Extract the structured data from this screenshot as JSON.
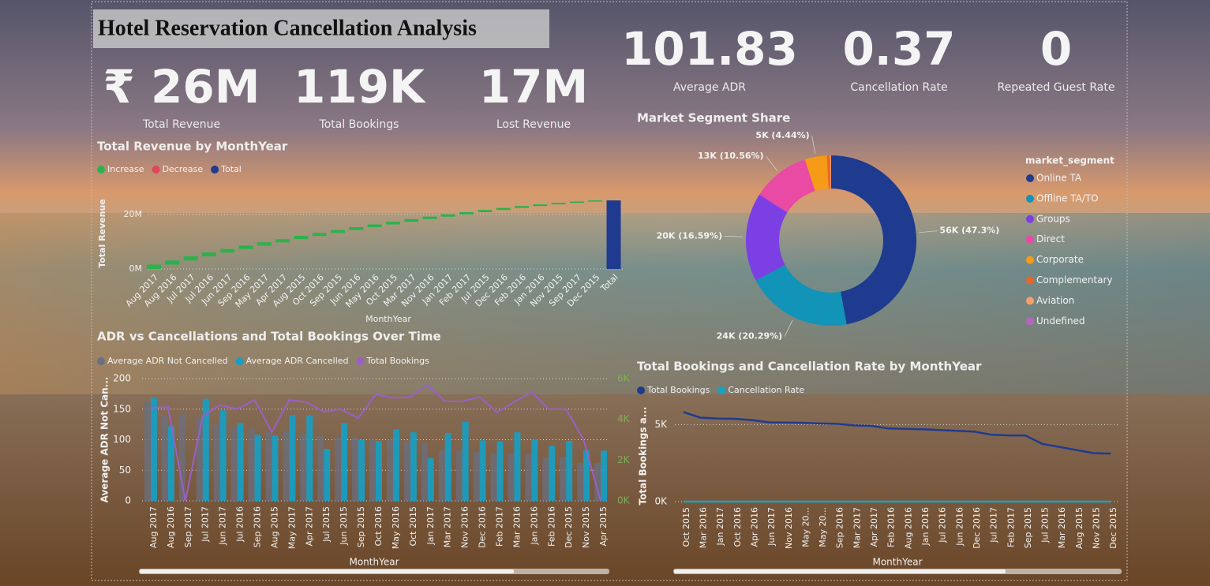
{
  "header": {
    "title": "Hotel Reservation Cancellation Analysis"
  },
  "kpis": [
    {
      "value": "₹ 26M",
      "label": "Total Revenue"
    },
    {
      "value": "119K",
      "label": "Total Bookings"
    },
    {
      "value": "17M",
      "label": "Lost Revenue"
    },
    {
      "value": "101.83",
      "label": "Average ADR"
    },
    {
      "value": "0.37",
      "label": "Cancellation Rate"
    },
    {
      "value": "0",
      "label": "Repeated Guest Rate"
    }
  ],
  "chart_data": [
    {
      "type": "waterfall",
      "title": "Total Revenue by MonthYear",
      "legend": [
        {
          "name": "Increase",
          "color": "#2bb24c"
        },
        {
          "name": "Decrease",
          "color": "#e0455a"
        },
        {
          "name": "Total",
          "color": "#1f3b8f"
        }
      ],
      "categories": [
        "Aug 2017",
        "Aug 2016",
        "Jul 2017",
        "Jul 2016",
        "Jun 2017",
        "Sep 2016",
        "May 2017",
        "Apr 2017",
        "Aug 2015",
        "Oct 2016",
        "Sep 2015",
        "Jun 2016",
        "May 2016",
        "Oct 2015",
        "Mar 2017",
        "Nov 2016",
        "Jan 2017",
        "Feb 2017",
        "Jul 2015",
        "Dec 2016",
        "Feb 2016",
        "Jan 2016",
        "Nov 2015",
        "Sep 2017",
        "Dec 2015"
      ],
      "values": [
        1600000,
        1500000,
        1500000,
        1400000,
        1300000,
        1250000,
        1200000,
        1200000,
        1150000,
        1100000,
        1050000,
        1050000,
        1000000,
        1000000,
        950000,
        900000,
        850000,
        800000,
        800000,
        750000,
        700000,
        600000,
        550000,
        500000,
        400000
      ],
      "total": {
        "label": "Total",
        "value": 25100000
      },
      "ylim": [
        0,
        26000000
      ],
      "yticks": [
        {
          "value": 0,
          "label": "0M"
        },
        {
          "value": 20000000,
          "label": "20M"
        }
      ],
      "y_label": "Total Revenue",
      "x_label": "MonthYear",
      "grid": true
    },
    {
      "type": "combo",
      "title": "ADR vs Cancellations and Total Bookings Over Time",
      "categories": [
        "Aug 2017",
        "Aug 2016",
        "Sep 2017",
        "Jul 2017",
        "Jun 2017",
        "Jul 2016",
        "Sep 2016",
        "Aug 2015",
        "May 2017",
        "Apr 2017",
        "Jul 2015",
        "Jun 2015",
        "Sep 2015",
        "Oct 2016",
        "May 2016",
        "Oct 2015",
        "Jan 2017",
        "Mar 2017",
        "Nov 2016",
        "Dec 2016",
        "Feb 2017",
        "Mar 2016",
        "Jan 2016",
        "Feb 2016",
        "Dec 2015",
        "Nov 2015",
        "Apr 2015"
      ],
      "series": [
        {
          "name": "Average ADR Not Cancelled",
          "color": "#6b6f80",
          "type": "bar",
          "values": [
            162,
            140,
            143,
            137,
            125,
            120,
            118,
            113,
            115,
            110,
            107,
            105,
            104,
            100,
            100,
            98,
            95,
            83,
            82,
            80,
            78,
            76,
            77,
            72,
            72,
            62,
            62
          ]
        },
        {
          "name": "Average ADR Cancelled",
          "color": "#1a9dc0",
          "type": "bar",
          "values": [
            168,
            122,
            null,
            167,
            148,
            127,
            108,
            107,
            140,
            140,
            85,
            127,
            100,
            98,
            117,
            112,
            70,
            111,
            129,
            99,
            97,
            112,
            100,
            90,
            98,
            83,
            82
          ]
        },
        {
          "name": "Total Bookings",
          "color": "#9b5fc8",
          "type": "line",
          "axis": "y2",
          "values": [
            4570,
            4600,
            0,
            4140,
            4700,
            4500,
            4950,
            3370,
            4950,
            4850,
            4370,
            4500,
            4060,
            5220,
            5050,
            5100,
            5690,
            4880,
            4880,
            5100,
            4340,
            4850,
            5340,
            4500,
            4500,
            3020,
            0
          ]
        }
      ],
      "ylim": [
        0,
        200
      ],
      "yticks": [
        0,
        50,
        100,
        150,
        200
      ],
      "y2lim": [
        0,
        6000
      ],
      "y2ticks": [
        {
          "value": 0,
          "label": "0K"
        },
        {
          "value": 2000,
          "label": "2K"
        },
        {
          "value": 4000,
          "label": "4K"
        },
        {
          "value": 6000,
          "label": "6K"
        }
      ],
      "y_label": "Average ADR Not Can...",
      "x_label": "MonthYear",
      "grid": true
    },
    {
      "type": "donut",
      "title": "Market Segment Share",
      "legend_title": "market_segment",
      "categories": [
        "Online TA",
        "Offline TA/TO",
        "Groups",
        "Direct",
        "Corporate",
        "Complementary",
        "Aviation",
        "Undefined"
      ],
      "values": [
        56000,
        24000,
        20000,
        13000,
        5000,
        700,
        230,
        2
      ],
      "value_labels": [
        "56K (47.3%)",
        "24K (20.29%)",
        "20K (16.59%)",
        "13K (10.56%)",
        "5K (4.44%)",
        null,
        null,
        null
      ],
      "colors": [
        "#1f3b8f",
        "#1293b8",
        "#7b3fe4",
        "#e84aa4",
        "#f59b18",
        "#e8662a",
        "#f7a06a",
        "#b565c0"
      ]
    },
    {
      "type": "line",
      "title": "Total Bookings and Cancellation Rate by MonthYear",
      "categories": [
        "Oct 2015",
        "Mar 2016",
        "Jan 2017",
        "Oct 2016",
        "Apr 2016",
        "Jun 2017",
        "Nov 2016",
        "May 20...",
        "May 20...",
        "Sep 2016",
        "Mar 2017",
        "Apr 2017",
        "Feb 2016",
        "Aug 2016",
        "Jan 2016",
        "Jul 2016",
        "Jun 2016",
        "Dec 2016",
        "Jul 2017",
        "Feb 2017",
        "Sep 2015",
        "Jul 2015",
        "Mar 2016",
        "Aug 2015",
        "Nov 2015",
        "Dec 2015"
      ],
      "series": [
        {
          "name": "Total Bookings",
          "color": "#1f3b8f",
          "values": [
            5820,
            5450,
            5400,
            5380,
            5300,
            5150,
            5140,
            5120,
            5080,
            5050,
            4950,
            4920,
            4750,
            4730,
            4700,
            4650,
            4600,
            4550,
            4350,
            4300,
            4300,
            3750,
            3550,
            3350,
            3150,
            3120
          ]
        },
        {
          "name": "Cancellation Rate",
          "color": "#1aa0c0",
          "values": [
            0.38,
            0.36,
            0.35,
            0.41,
            0.37,
            0.33,
            0.36,
            0.4,
            0.39,
            0.35,
            0.37,
            0.39,
            0.33,
            0.38,
            0.3,
            0.36,
            0.41,
            0.32,
            0.4,
            0.34,
            0.37,
            0.41,
            0.35,
            0.38,
            0.31,
            0.33
          ]
        }
      ],
      "ylim": [
        0,
        6200
      ],
      "yticks": [
        {
          "value": 0,
          "label": "0K"
        },
        {
          "value": 5000,
          "label": "5K"
        }
      ],
      "y_label": "Total Bookings a...",
      "x_label": "MonthYear",
      "grid": true
    }
  ]
}
